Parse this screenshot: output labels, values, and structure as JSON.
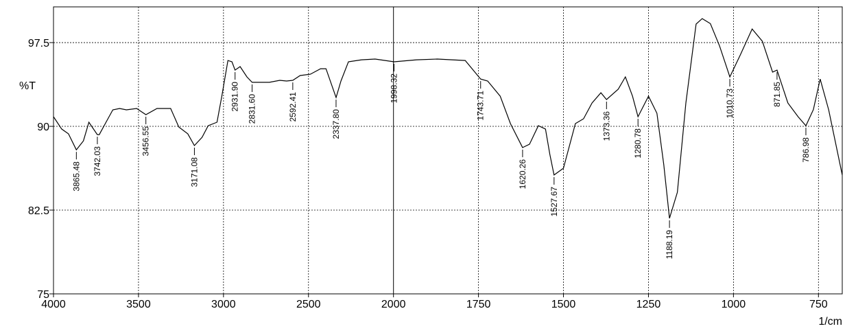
{
  "chart_data": {
    "type": "line",
    "y_label": "%T",
    "x_label": "1/cm",
    "xlim": [
      4000,
      680
    ],
    "x_scale_break": 2000,
    "x_break_scale": 2,
    "ylim": [
      75,
      100.7
    ],
    "xticks": [
      4000,
      3500,
      3000,
      2500,
      2000,
      1750,
      1500,
      1250,
      1000,
      750
    ],
    "yticks": [
      75,
      82.5,
      90,
      97.5
    ],
    "grid": true,
    "color": "#000000",
    "x": [
      4000,
      3952,
      3912,
      3865.48,
      3824,
      3792,
      3742.03,
      3731,
      3691,
      3651,
      3611,
      3571,
      3511,
      3456.55,
      3391,
      3311,
      3263,
      3210,
      3171.08,
      3126,
      3090,
      3038,
      3010,
      2974,
      2950,
      2931.9,
      2902,
      2862,
      2831.6,
      2730,
      2669,
      2629,
      2592.41,
      2549,
      2489,
      2429,
      2397,
      2337.8,
      2309,
      2265,
      2188,
      2108,
      1998.32,
      1932,
      1871,
      1789,
      1743.71,
      1723,
      1686,
      1656,
      1620.26,
      1600,
      1574,
      1553,
      1540,
      1527.67,
      1500,
      1465,
      1441,
      1416,
      1390,
      1373.36,
      1339,
      1318,
      1297,
      1280.78,
      1250,
      1225,
      1205,
      1188.19,
      1165,
      1140,
      1110,
      1092,
      1068,
      1041,
      1022,
      1010.73,
      980,
      945,
      915,
      885,
      871.85,
      840,
      810,
      786.98,
      765,
      745,
      720,
      680
    ],
    "values": [
      90.86,
      89.76,
      89.33,
      87.9,
      88.7,
      90.37,
      89.26,
      89.26,
      90.37,
      91.48,
      91.6,
      91.48,
      91.6,
      91.05,
      91.6,
      91.6,
      89.94,
      89.33,
      88.28,
      89.02,
      90.06,
      90.37,
      92.7,
      95.9,
      95.78,
      95.04,
      95.35,
      94.43,
      93.94,
      93.94,
      94.12,
      94.06,
      94.12,
      94.55,
      94.67,
      95.16,
      95.16,
      92.58,
      94.06,
      95.78,
      95.96,
      96.03,
      95.78,
      95.96,
      96.03,
      95.9,
      94.24,
      94.06,
      92.7,
      90.25,
      88.1,
      88.4,
      90.06,
      89.76,
      87.48,
      85.64,
      86.25,
      90.25,
      90.68,
      92.09,
      93.01,
      92.4,
      93.32,
      94.43,
      92.7,
      90.86,
      92.7,
      91.17,
      86.56,
      81.77,
      84.1,
      92.09,
      99.16,
      99.65,
      99.2,
      97.2,
      95.47,
      94.43,
      96.39,
      98.72,
      97.62,
      94.86,
      95.04,
      92.09,
      90.86,
      90.06,
      91.5,
      94.24,
      91.48,
      85.64
    ],
    "peaks": [
      3865.48,
      3742.03,
      3456.55,
      3171.08,
      {
        "value": 2931.9,
        "label": "2931.90"
      },
      {
        "value": 2831.6,
        "label": "2831.60"
      },
      2592.41,
      {
        "value": 2337.8,
        "label": "2337.80"
      },
      1998.32,
      1743.71,
      1620.26,
      1527.67,
      1373.36,
      1280.78,
      1188.19,
      1010.73,
      871.85,
      786.98
    ]
  }
}
